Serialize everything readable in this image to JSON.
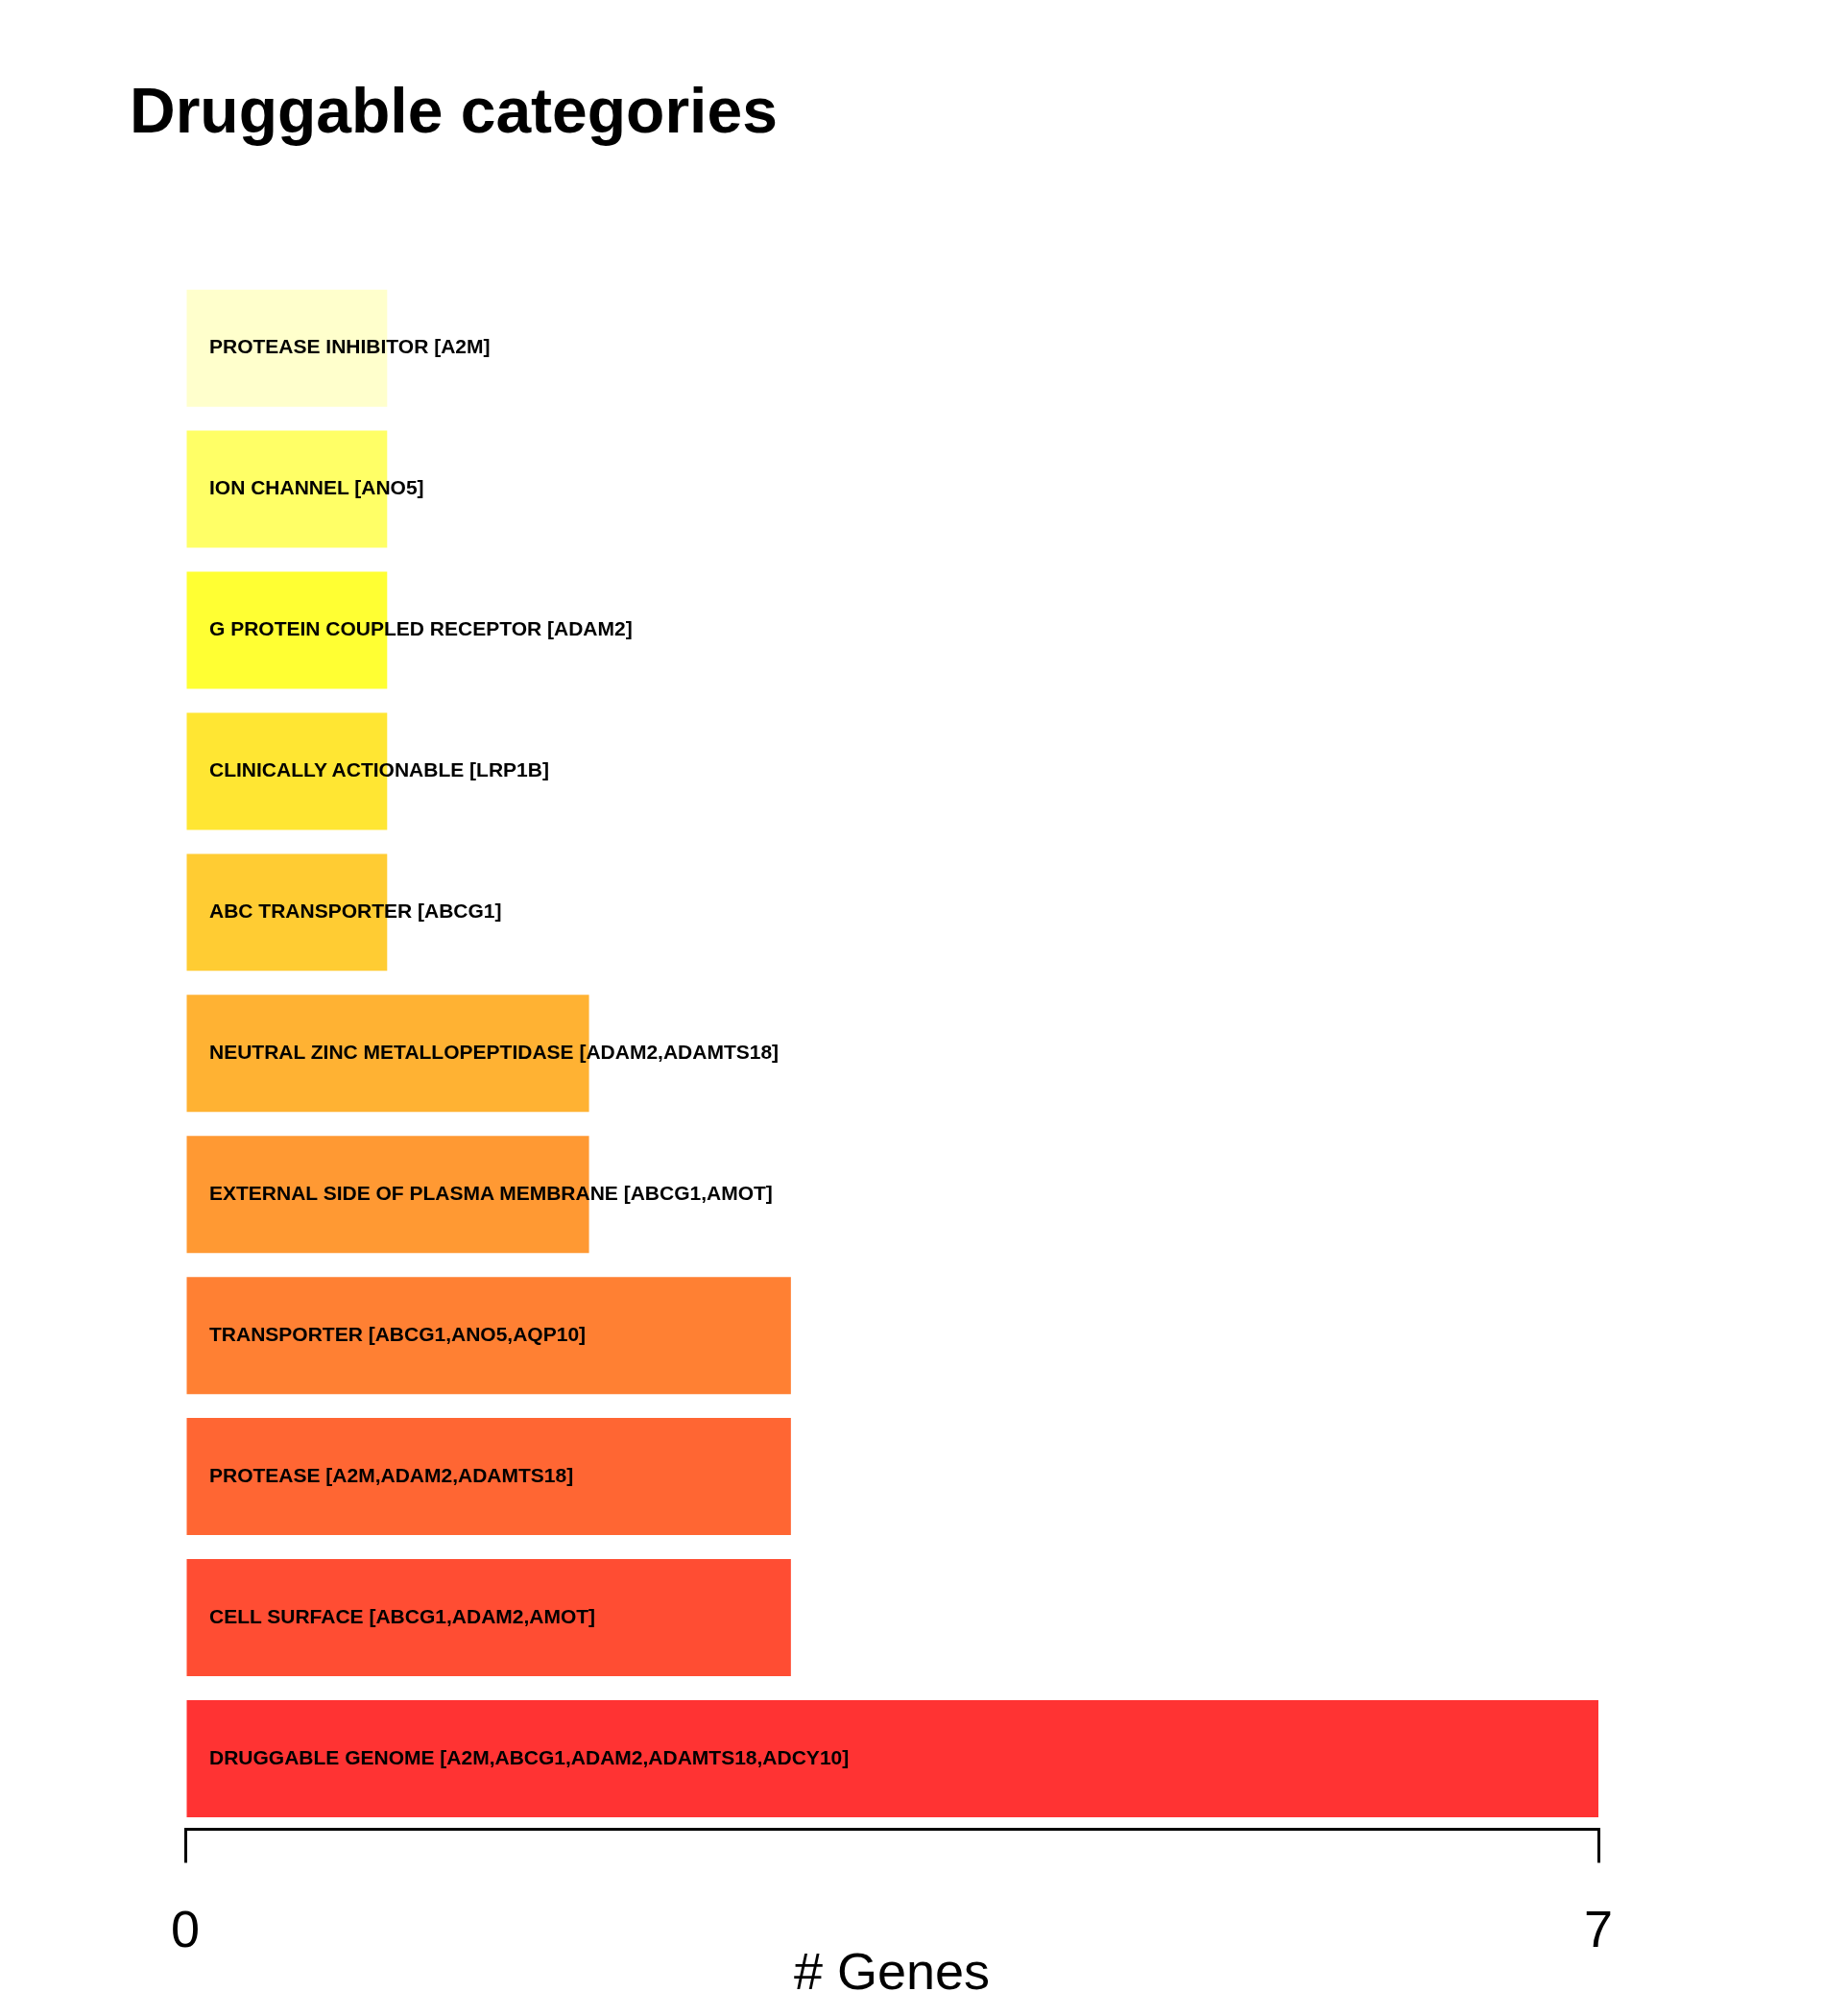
{
  "chart_data": {
    "type": "bar",
    "orientation": "horizontal",
    "title": "Druggable categories",
    "xlabel": "# Genes",
    "categories": [
      "PROTEASE INHIBITOR [A2M]",
      "ION CHANNEL [ANO5]",
      "G PROTEIN COUPLED RECEPTOR [ADAM2]",
      "CLINICALLY ACTIONABLE [LRP1B]",
      "ABC TRANSPORTER [ABCG1]",
      "NEUTRAL ZINC METALLOPEPTIDASE [ADAM2,ADAMTS18]",
      "EXTERNAL SIDE OF PLASMA MEMBRANE [ABCG1,AMOT]",
      "TRANSPORTER [ABCG1,ANO5,AQP10]",
      "PROTEASE [A2M,ADAM2,ADAMTS18]",
      "CELL SURFACE [ABCG1,ADAM2,AMOT]",
      "DRUGGABLE GENOME [A2M,ABCG1,ADAM2,ADAMTS18,ADCY10]"
    ],
    "values": [
      1,
      1,
      1,
      1,
      1,
      2,
      2,
      3,
      3,
      3,
      7
    ],
    "colors": [
      "#ffffcc",
      "#ffff66",
      "#ffff33",
      "#ffe633",
      "#ffcc33",
      "#ffb233",
      "#ff9933",
      "#ff8033",
      "#ff6633",
      "#ff4d33",
      "#ff3333"
    ],
    "xlim": [
      0,
      7
    ],
    "xticks": [
      0,
      7
    ],
    "grid": false,
    "legend": false
  }
}
